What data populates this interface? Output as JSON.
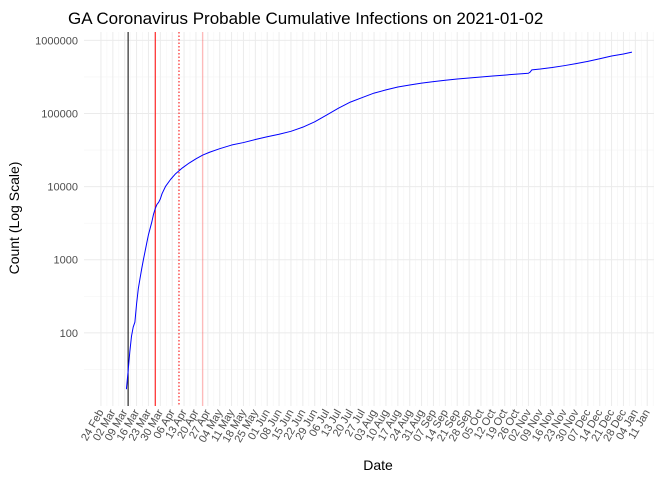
{
  "chart_data": {
    "type": "line",
    "title": "GA Coronavirus Probable Cumulative Infections on 2021-01-02",
    "xlabel": "Date",
    "ylabel": "Count (Log Scale)",
    "y_scale": "log10",
    "x_range": [
      "2020-02-24",
      "2021-01-11"
    ],
    "y_range": [
      10,
      1300000
    ],
    "y_ticks": [
      {
        "value": 100,
        "label": "100"
      },
      {
        "value": 1000,
        "label": "1000"
      },
      {
        "value": 10000,
        "label": "10000"
      },
      {
        "value": 100000,
        "label": "100000"
      },
      {
        "value": 1000000,
        "label": "1000000"
      }
    ],
    "x_ticks": [
      {
        "date": "2020-02-24",
        "label": "24 Feb"
      },
      {
        "date": "2020-03-02",
        "label": "02 Mar"
      },
      {
        "date": "2020-03-09",
        "label": "09 Mar"
      },
      {
        "date": "2020-03-16",
        "label": "16 Mar"
      },
      {
        "date": "2020-03-23",
        "label": "23 Mar"
      },
      {
        "date": "2020-03-30",
        "label": "30 Mar"
      },
      {
        "date": "2020-04-06",
        "label": "06 Apr"
      },
      {
        "date": "2020-04-13",
        "label": "13 Apr"
      },
      {
        "date": "2020-04-20",
        "label": "20 Apr"
      },
      {
        "date": "2020-04-27",
        "label": "27 Apr"
      },
      {
        "date": "2020-05-04",
        "label": "04 May"
      },
      {
        "date": "2020-05-11",
        "label": "11 May"
      },
      {
        "date": "2020-05-18",
        "label": "18 May"
      },
      {
        "date": "2020-05-25",
        "label": "25 May"
      },
      {
        "date": "2020-06-01",
        "label": "01 Jun"
      },
      {
        "date": "2020-06-08",
        "label": "08 Jun"
      },
      {
        "date": "2020-06-15",
        "label": "15 Jun"
      },
      {
        "date": "2020-06-22",
        "label": "22 Jun"
      },
      {
        "date": "2020-06-29",
        "label": "29 Jun"
      },
      {
        "date": "2020-07-06",
        "label": "06 Jul"
      },
      {
        "date": "2020-07-13",
        "label": "13 Jul"
      },
      {
        "date": "2020-07-20",
        "label": "20 Jul"
      },
      {
        "date": "2020-07-27",
        "label": "27 Jul"
      },
      {
        "date": "2020-08-03",
        "label": "03 Aug"
      },
      {
        "date": "2020-08-10",
        "label": "10 Aug"
      },
      {
        "date": "2020-08-17",
        "label": "17 Aug"
      },
      {
        "date": "2020-08-24",
        "label": "24 Aug"
      },
      {
        "date": "2020-08-31",
        "label": "31 Aug"
      },
      {
        "date": "2020-09-07",
        "label": "07 Sep"
      },
      {
        "date": "2020-09-14",
        "label": "14 Sep"
      },
      {
        "date": "2020-09-21",
        "label": "21 Sep"
      },
      {
        "date": "2020-09-28",
        "label": "28 Sep"
      },
      {
        "date": "2020-10-05",
        "label": "05 Oct"
      },
      {
        "date": "2020-10-12",
        "label": "12 Oct"
      },
      {
        "date": "2020-10-19",
        "label": "19 Oct"
      },
      {
        "date": "2020-10-26",
        "label": "26 Oct"
      },
      {
        "date": "2020-11-02",
        "label": "02 Nov"
      },
      {
        "date": "2020-11-09",
        "label": "09 Nov"
      },
      {
        "date": "2020-11-16",
        "label": "16 Nov"
      },
      {
        "date": "2020-11-23",
        "label": "23 Nov"
      },
      {
        "date": "2020-11-30",
        "label": "30 Nov"
      },
      {
        "date": "2020-12-07",
        "label": "07 Dec"
      },
      {
        "date": "2020-12-14",
        "label": "14 Dec"
      },
      {
        "date": "2020-12-21",
        "label": "21 Dec"
      },
      {
        "date": "2020-12-28",
        "label": "28 Dec"
      },
      {
        "date": "2021-01-04",
        "label": "04 Jan"
      },
      {
        "date": "2021-01-11",
        "label": "11 Jan"
      }
    ],
    "grid": true,
    "series": [
      {
        "color": "#0000ff",
        "points": [
          {
            "date": "2020-03-10",
            "value": 17
          },
          {
            "date": "2020-03-11",
            "value": 30
          },
          {
            "date": "2020-03-12",
            "value": 55
          },
          {
            "date": "2020-03-13",
            "value": 90
          },
          {
            "date": "2020-03-14",
            "value": 120
          },
          {
            "date": "2020-03-15",
            "value": 140
          },
          {
            "date": "2020-03-16",
            "value": 250
          },
          {
            "date": "2020-03-17",
            "value": 400
          },
          {
            "date": "2020-03-18",
            "value": 550
          },
          {
            "date": "2020-03-19",
            "value": 750
          },
          {
            "date": "2020-03-20",
            "value": 1000
          },
          {
            "date": "2020-03-21",
            "value": 1300
          },
          {
            "date": "2020-03-22",
            "value": 1700
          },
          {
            "date": "2020-03-23",
            "value": 2200
          },
          {
            "date": "2020-03-24",
            "value": 2700
          },
          {
            "date": "2020-03-25",
            "value": 3300
          },
          {
            "date": "2020-03-26",
            "value": 4200
          },
          {
            "date": "2020-03-27",
            "value": 5000
          },
          {
            "date": "2020-03-28",
            "value": 5700
          },
          {
            "date": "2020-03-29",
            "value": 6100
          },
          {
            "date": "2020-03-30",
            "value": 6800
          },
          {
            "date": "2020-03-31",
            "value": 8000
          },
          {
            "date": "2020-04-02",
            "value": 10000
          },
          {
            "date": "2020-04-05",
            "value": 12500
          },
          {
            "date": "2020-04-08",
            "value": 15000
          },
          {
            "date": "2020-04-12",
            "value": 18000
          },
          {
            "date": "2020-04-16",
            "value": 21000
          },
          {
            "date": "2020-04-20",
            "value": 24000
          },
          {
            "date": "2020-04-24",
            "value": 27000
          },
          {
            "date": "2020-04-28",
            "value": 29500
          },
          {
            "date": "2020-05-04",
            "value": 33000
          },
          {
            "date": "2020-05-11",
            "value": 37000
          },
          {
            "date": "2020-05-18",
            "value": 40000
          },
          {
            "date": "2020-05-25",
            "value": 44000
          },
          {
            "date": "2020-06-01",
            "value": 48000
          },
          {
            "date": "2020-06-08",
            "value": 52000
          },
          {
            "date": "2020-06-15",
            "value": 57000
          },
          {
            "date": "2020-06-22",
            "value": 65000
          },
          {
            "date": "2020-06-29",
            "value": 77000
          },
          {
            "date": "2020-07-06",
            "value": 95000
          },
          {
            "date": "2020-07-13",
            "value": 118000
          },
          {
            "date": "2020-07-20",
            "value": 143000
          },
          {
            "date": "2020-07-27",
            "value": 165000
          },
          {
            "date": "2020-08-03",
            "value": 190000
          },
          {
            "date": "2020-08-10",
            "value": 210000
          },
          {
            "date": "2020-08-17",
            "value": 230000
          },
          {
            "date": "2020-08-24",
            "value": 245000
          },
          {
            "date": "2020-08-31",
            "value": 260000
          },
          {
            "date": "2020-09-07",
            "value": 272000
          },
          {
            "date": "2020-09-14",
            "value": 285000
          },
          {
            "date": "2020-09-21",
            "value": 296000
          },
          {
            "date": "2020-09-28",
            "value": 305000
          },
          {
            "date": "2020-10-05",
            "value": 315000
          },
          {
            "date": "2020-10-12",
            "value": 325000
          },
          {
            "date": "2020-10-19",
            "value": 335000
          },
          {
            "date": "2020-10-26",
            "value": 345000
          },
          {
            "date": "2020-11-02",
            "value": 355000
          },
          {
            "date": "2020-11-03",
            "value": 368000
          },
          {
            "date": "2020-11-04",
            "value": 395000
          },
          {
            "date": "2020-11-09",
            "value": 405000
          },
          {
            "date": "2020-11-16",
            "value": 425000
          },
          {
            "date": "2020-11-23",
            "value": 450000
          },
          {
            "date": "2020-11-30",
            "value": 480000
          },
          {
            "date": "2020-12-07",
            "value": 515000
          },
          {
            "date": "2020-12-14",
            "value": 560000
          },
          {
            "date": "2020-12-21",
            "value": 610000
          },
          {
            "date": "2020-12-28",
            "value": 650000
          },
          {
            "date": "2021-01-02",
            "value": 690000
          }
        ]
      }
    ],
    "reference_lines": [
      {
        "date": "2020-03-11",
        "color": "#000000",
        "style": "solid"
      },
      {
        "date": "2020-03-27",
        "color": "#ff0000",
        "style": "solid"
      },
      {
        "date": "2020-04-10",
        "color": "#ff0000",
        "style": "dotted"
      },
      {
        "date": "2020-04-24",
        "color": "#ff0000",
        "style": "faint"
      }
    ]
  },
  "colors": {
    "panel_background": "#ffffff",
    "grid_major": "#ebebeb",
    "grid_minor": "#f5f5f5",
    "line": "#0000ff"
  }
}
